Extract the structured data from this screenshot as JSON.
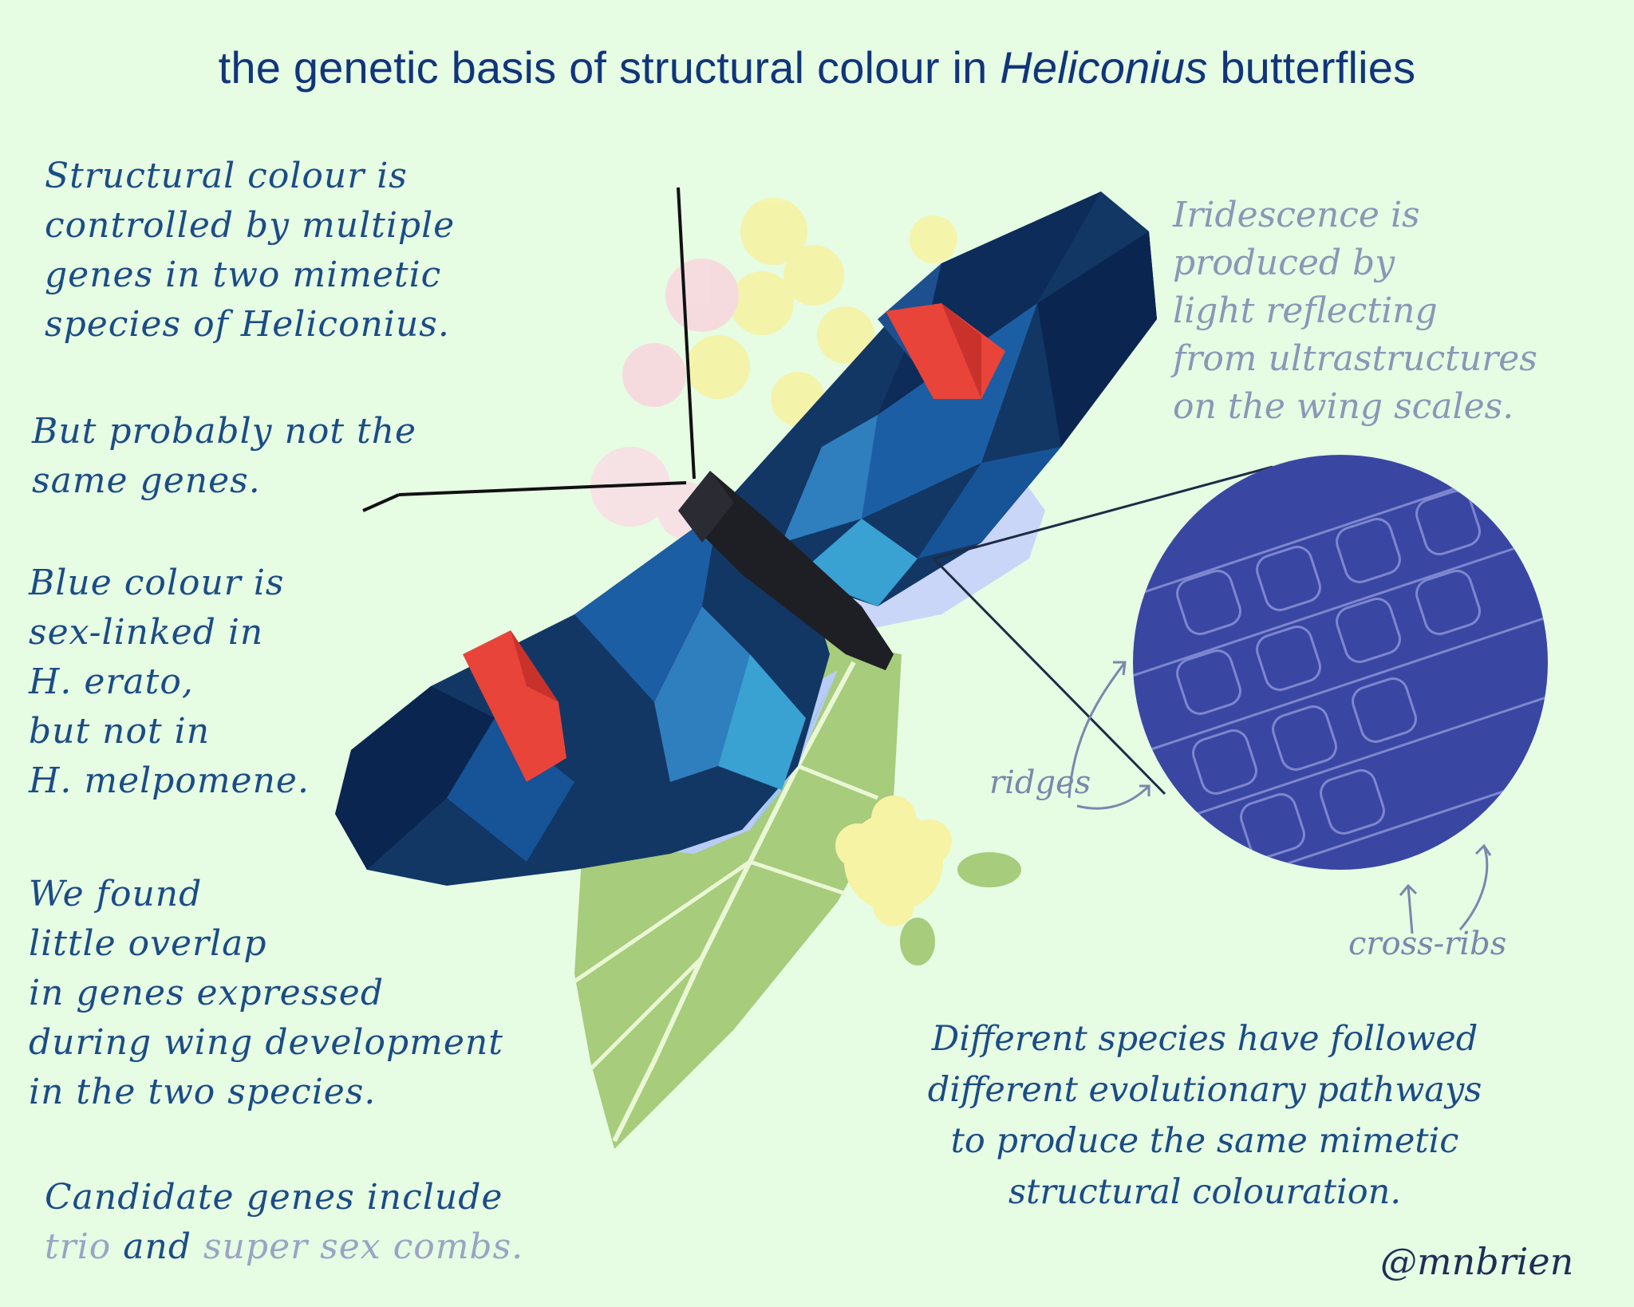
{
  "title": {
    "before": "the genetic basis of structural colour in ",
    "italic": "Heliconius",
    "after": " butterflies"
  },
  "notes_left": {
    "p1": "Structural colour is\ncontrolled by multiple\ngenes in two mimetic\nspecies of Heliconius.",
    "p2": "But probably not the\nsame genes.",
    "p3": "Blue colour is\nsex-linked in\nH. erato,\nbut not in\nH. melpomene.",
    "p4": "We found\nlittle overlap\nin genes expressed\nduring wing development\nin the two species.",
    "p5_start": "Candidate genes include",
    "gene1": "trio",
    "p5_and": " and ",
    "gene2": "super sex combs",
    "p5_end": "."
  },
  "notes_right": {
    "iridescence": "Iridescence is\nproduced by\nlight reflecting\nfrom ultrastructures\non the wing scales.",
    "conclusion": "Different species have followed\ndifferent evolutionary pathways\nto produce the same mimetic\nstructural colouration."
  },
  "labels": {
    "ridges": "ridges",
    "cross_ribs": "cross-ribs"
  },
  "signature": "@mnbrien",
  "colors": {
    "background": "#e6fce3",
    "title": "#11357a",
    "ink": "#1b4c86",
    "wing_dark": "#0d2c5a",
    "wing_blue": "#2f7fbf",
    "red_patch": "#e8443a",
    "scale_circle": "#3947a3"
  }
}
